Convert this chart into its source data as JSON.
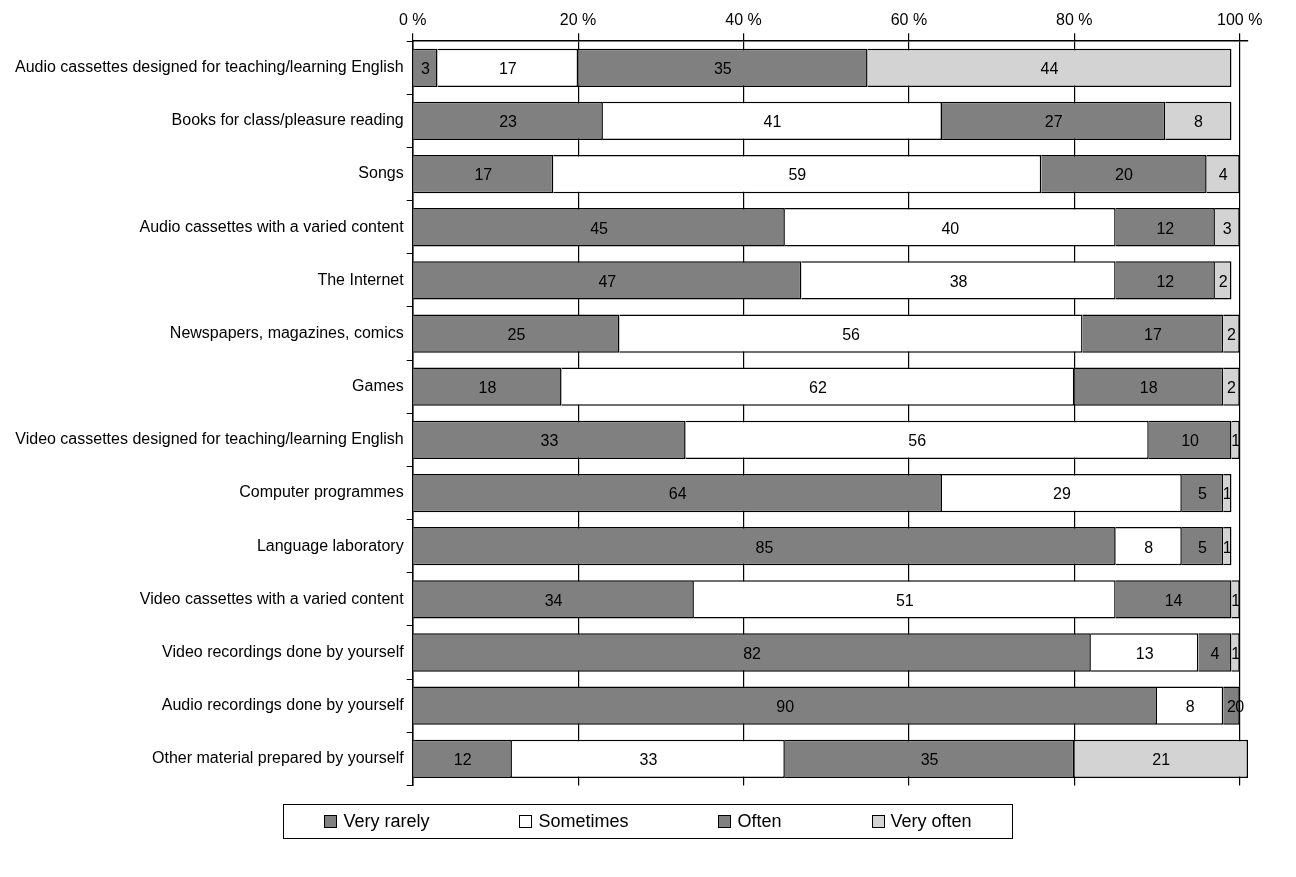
{
  "chart_data": {
    "type": "bar",
    "orientation": "horizontal",
    "stacked": true,
    "data_labels": true,
    "grid": "x",
    "legend": "bottom",
    "categories": [
      "Audio cassettes designed for teaching/learning English",
      "Books for class/pleasure reading",
      "Songs",
      "Audio cassettes with a varied content",
      "The Internet",
      "Newspapers, magazines, comics",
      "Games",
      "Video cassettes designed for teaching/learning English",
      "Computer programmes",
      "Language laboratory",
      "Video cassettes with a varied content",
      "Video recordings done by yourself",
      "Audio recordings done by yourself",
      "Other material prepared by yourself"
    ],
    "xlim": [
      0,
      101
    ],
    "xticks": [
      {
        "value": 0,
        "label": "0 %"
      },
      {
        "value": 20,
        "label": "20 %"
      },
      {
        "value": 40,
        "label": "40 %"
      },
      {
        "value": 60,
        "label": "60 %"
      },
      {
        "value": 80,
        "label": "80 %"
      },
      {
        "value": 100,
        "label": "100 %"
      }
    ],
    "series": [
      {
        "name": "Very rarely",
        "color": "#808080",
        "values": [
          3,
          23,
          17,
          45,
          47,
          25,
          18,
          33,
          64,
          85,
          34,
          82,
          90,
          12
        ]
      },
      {
        "name": "Sometimes",
        "color": "#ffffff",
        "values": [
          17,
          41,
          59,
          40,
          38,
          56,
          62,
          56,
          29,
          8,
          51,
          13,
          8,
          33
        ]
      },
      {
        "name": "Often",
        "color": "#808080",
        "values": [
          35,
          27,
          20,
          12,
          12,
          17,
          18,
          10,
          5,
          5,
          14,
          4,
          2,
          35
        ]
      },
      {
        "name": "Very often",
        "color": "#d3d3d3",
        "values": [
          44,
          8,
          4,
          3,
          2,
          2,
          2,
          1,
          1,
          1,
          1,
          1,
          0,
          21
        ]
      }
    ]
  }
}
